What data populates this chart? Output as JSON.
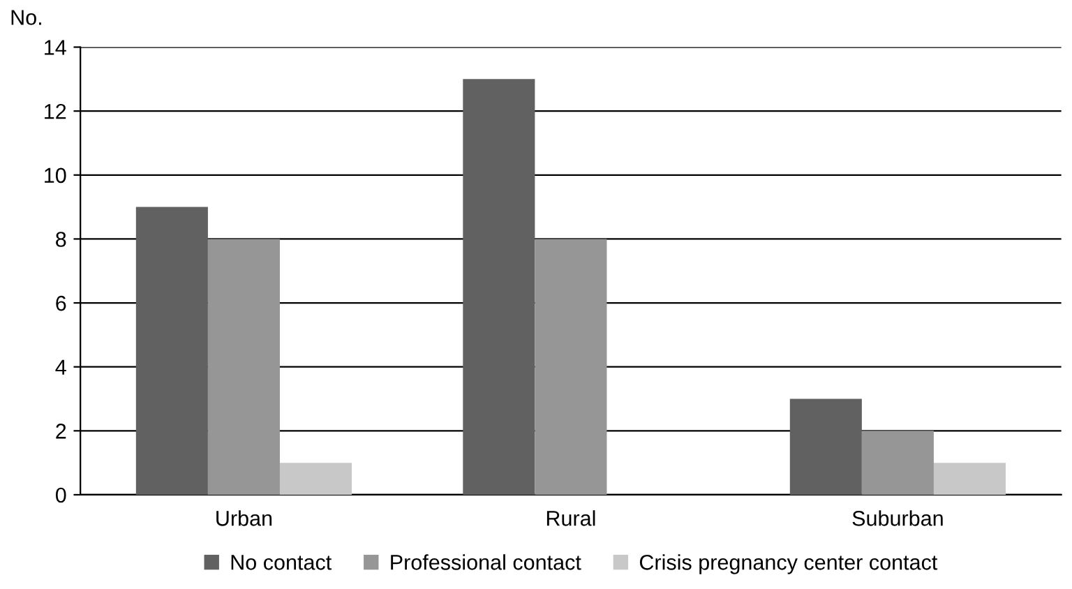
{
  "chart_data": {
    "type": "bar",
    "ylabel": "No.",
    "categories": [
      "Urban",
      "Rural",
      "Suburban"
    ],
    "series": [
      {
        "name": "No contact",
        "color": "#616161",
        "values": [
          9,
          13,
          3
        ]
      },
      {
        "name": "Professional contact",
        "color": "#969696",
        "values": [
          8,
          8,
          2
        ]
      },
      {
        "name": "Crisis pregnancy center contact",
        "color": "#c8c8c8",
        "values": [
          1,
          0,
          1
        ]
      }
    ],
    "ylim": [
      0,
      14
    ],
    "yticks": [
      0,
      2,
      4,
      6,
      8,
      10,
      12,
      14
    ],
    "grid": "y",
    "legend": "bottom"
  }
}
